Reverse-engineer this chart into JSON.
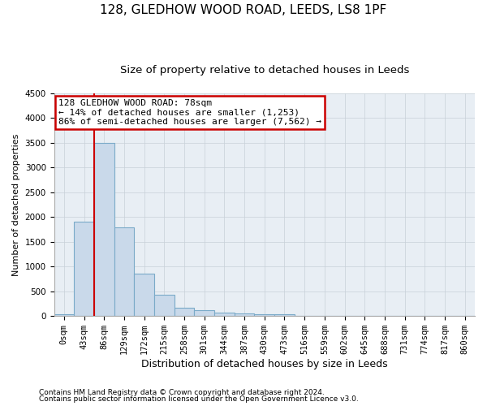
{
  "title1": "128, GLEDHOW WOOD ROAD, LEEDS, LS8 1PF",
  "title2": "Size of property relative to detached houses in Leeds",
  "xlabel": "Distribution of detached houses by size in Leeds",
  "ylabel": "Number of detached properties",
  "footnote1": "Contains HM Land Registry data © Crown copyright and database right 2024.",
  "footnote2": "Contains public sector information licensed under the Open Government Licence v3.0.",
  "annotation_line1": "128 GLEDHOW WOOD ROAD: 78sqm",
  "annotation_line2": "← 14% of detached houses are smaller (1,253)",
  "annotation_line3": "86% of semi-detached houses are larger (7,562) →",
  "bar_labels": [
    "0sqm",
    "43sqm",
    "86sqm",
    "129sqm",
    "172sqm",
    "215sqm",
    "258sqm",
    "301sqm",
    "344sqm",
    "387sqm",
    "430sqm",
    "473sqm",
    "516sqm",
    "559sqm",
    "602sqm",
    "645sqm",
    "688sqm",
    "731sqm",
    "774sqm",
    "817sqm",
    "860sqm"
  ],
  "bar_values": [
    30,
    1900,
    3500,
    1800,
    850,
    430,
    170,
    120,
    70,
    55,
    40,
    30,
    0,
    0,
    0,
    0,
    0,
    0,
    0,
    0,
    0
  ],
  "bar_color": "#c9d9ea",
  "bar_edge_color": "#7aaac8",
  "ylim": [
    0,
    4500
  ],
  "yticks": [
    0,
    500,
    1000,
    1500,
    2000,
    2500,
    3000,
    3500,
    4000,
    4500
  ],
  "grid_color": "#c8d0d8",
  "bg_color": "#e8eef4",
  "marker_color": "#cc0000",
  "annotation_box_color": "#cc0000",
  "title1_fontsize": 11,
  "title2_fontsize": 9.5,
  "ylabel_fontsize": 8,
  "xlabel_fontsize": 9,
  "tick_fontsize": 7.5,
  "ann_fontsize": 8,
  "footnote_fontsize": 6.5,
  "figsize": [
    6.0,
    5.0
  ],
  "dpi": 100
}
